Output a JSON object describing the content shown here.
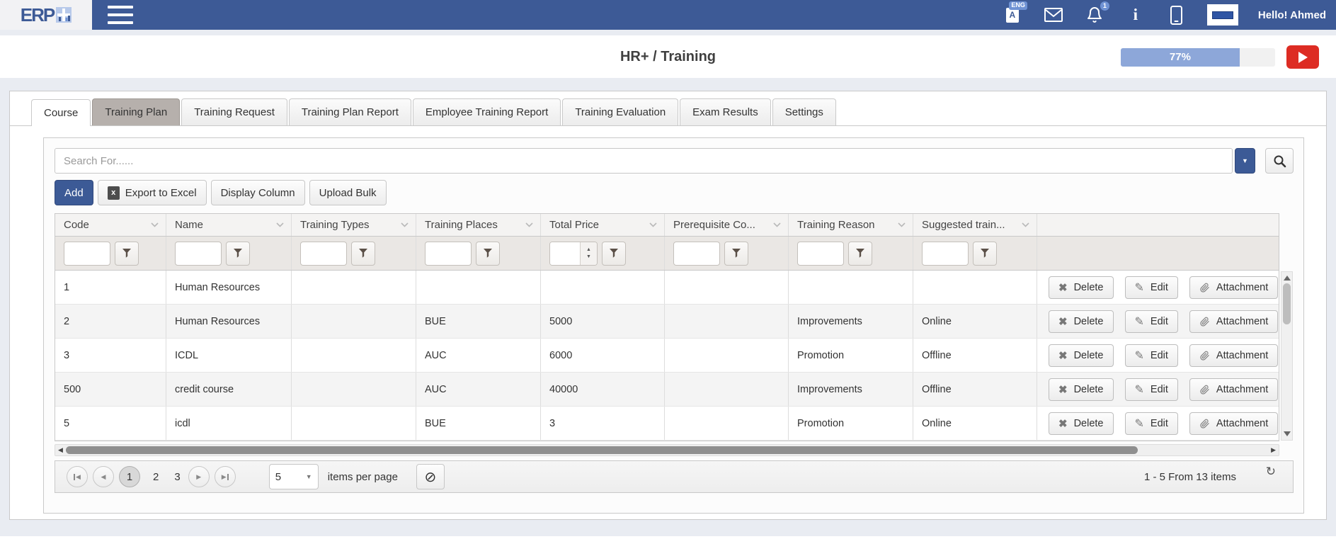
{
  "navbar": {
    "logo_text": "ERP",
    "language_badge": "ENG",
    "language_letter": "A",
    "notification_count": "1",
    "info_glyph": "i",
    "user_greeting": "Hello! Ahmed"
  },
  "header": {
    "title": "HR+ / Training",
    "progress_percent": "77%"
  },
  "tabs": [
    {
      "label": "Course",
      "active": true
    },
    {
      "label": "Training Plan",
      "highlighted": true
    },
    {
      "label": "Training Request"
    },
    {
      "label": "Training Plan Report"
    },
    {
      "label": "Employee Training Report"
    },
    {
      "label": "Training Evaluation"
    },
    {
      "label": "Exam Results"
    },
    {
      "label": "Settings"
    }
  ],
  "toolbar": {
    "search_placeholder": "Search For......",
    "add_label": "Add",
    "export_label": "Export to Excel",
    "excel_icon_glyph": "x",
    "display_column_label": "Display Column",
    "upload_bulk_label": "Upload Bulk"
  },
  "grid": {
    "columns": [
      "Code",
      "Name",
      "Training Types",
      "Training Places",
      "Total Price",
      "Prerequisite Co...",
      "Training Reason",
      "Suggested train..."
    ],
    "numeric_filter_column_index": 4,
    "rows": [
      [
        "1",
        "Human Resources",
        "",
        "",
        "",
        "",
        "",
        ""
      ],
      [
        "2",
        "Human Resources",
        "",
        "BUE",
        "5000",
        "",
        "Improvements",
        "Online"
      ],
      [
        "3",
        "ICDL",
        "",
        "AUC",
        "6000",
        "",
        "Promotion",
        "Offline"
      ],
      [
        "500",
        "credit course",
        "",
        "AUC",
        "40000",
        "",
        "Improvements",
        "Offline"
      ],
      [
        "5",
        "icdl",
        "",
        "BUE",
        "3",
        "",
        "Promotion",
        "Online"
      ]
    ],
    "row_actions": [
      "Delete",
      "Edit",
      "Attachment"
    ]
  },
  "pager": {
    "pages": [
      "1",
      "2",
      "3"
    ],
    "current_page": "1",
    "page_size": "5",
    "items_per_page_label": "items per page",
    "summary": "1 - 5 From 13 items"
  },
  "colors": {
    "navbar_blue": "#3d5a96",
    "accent_blue": "#3c5a96",
    "progress_fill": "#8da7d9",
    "alert_red": "#dd2c23",
    "pressed_tab": "#b6b0ac"
  }
}
